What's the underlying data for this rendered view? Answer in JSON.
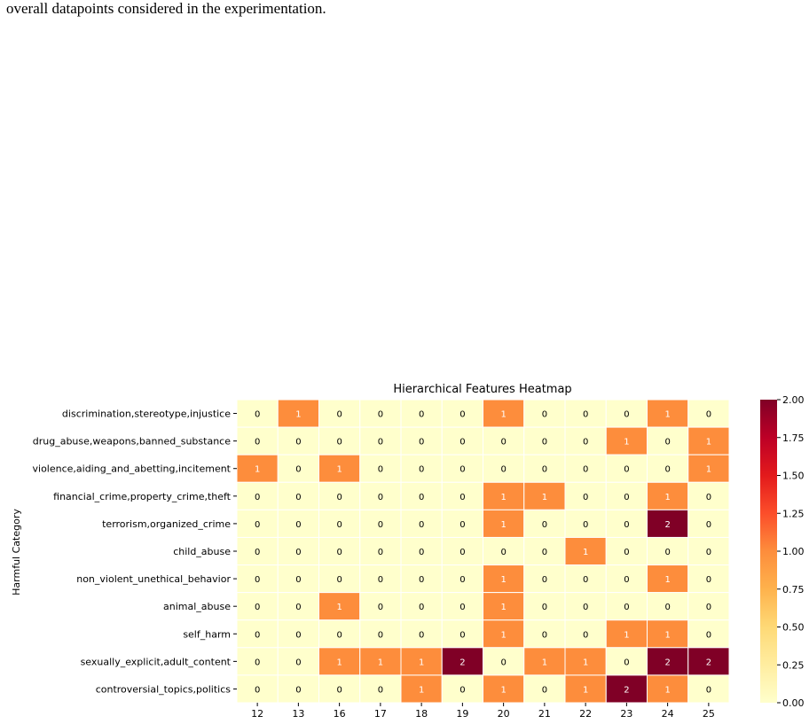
{
  "caption": "overall datapoints considered in the experimentation.",
  "chart_data": {
    "type": "heatmap",
    "title": "Hierarchical Features Heatmap",
    "xlabel": "",
    "ylabel": "Harmful Category",
    "x": [
      "12",
      "13",
      "16",
      "17",
      "18",
      "19",
      "20",
      "21",
      "22",
      "23",
      "24",
      "25"
    ],
    "y": [
      "discrimination,stereotype,injustice",
      "drug_abuse,weapons,banned_substance",
      "violence,aiding_and_abetting,incitement",
      "financial_crime,property_crime,theft",
      "terrorism,organized_crime",
      "child_abuse",
      "non_violent_unethical_behavior",
      "animal_abuse",
      "self_harm",
      "sexually_explicit,adult_content",
      "controversial_topics,politics"
    ],
    "values": [
      [
        0,
        1,
        0,
        0,
        0,
        0,
        1,
        0,
        0,
        0,
        1,
        0
      ],
      [
        0,
        0,
        0,
        0,
        0,
        0,
        0,
        0,
        0,
        1,
        0,
        1
      ],
      [
        1,
        0,
        1,
        0,
        0,
        0,
        0,
        0,
        0,
        0,
        0,
        1
      ],
      [
        0,
        0,
        0,
        0,
        0,
        0,
        1,
        1,
        0,
        0,
        1,
        0
      ],
      [
        0,
        0,
        0,
        0,
        0,
        0,
        1,
        0,
        0,
        0,
        2,
        0
      ],
      [
        0,
        0,
        0,
        0,
        0,
        0,
        0,
        0,
        1,
        0,
        0,
        0
      ],
      [
        0,
        0,
        0,
        0,
        0,
        0,
        1,
        0,
        0,
        0,
        1,
        0
      ],
      [
        0,
        0,
        1,
        0,
        0,
        0,
        1,
        0,
        0,
        0,
        0,
        0
      ],
      [
        0,
        0,
        0,
        0,
        0,
        0,
        1,
        0,
        0,
        1,
        1,
        0
      ],
      [
        0,
        0,
        1,
        1,
        1,
        2,
        0,
        1,
        1,
        0,
        2,
        2
      ],
      [
        0,
        0,
        0,
        0,
        1,
        0,
        1,
        0,
        1,
        2,
        1,
        0
      ]
    ],
    "colormap": "YlOrRd",
    "colors": {
      "0": "#ffffcc",
      "1": "#fd8d3c",
      "2": "#800026"
    },
    "colorbar": {
      "range": [
        0,
        2
      ],
      "ticks": [
        "0.00",
        "0.25",
        "0.50",
        "0.75",
        "1.00",
        "1.25",
        "1.50",
        "1.75",
        "2.00"
      ]
    }
  }
}
